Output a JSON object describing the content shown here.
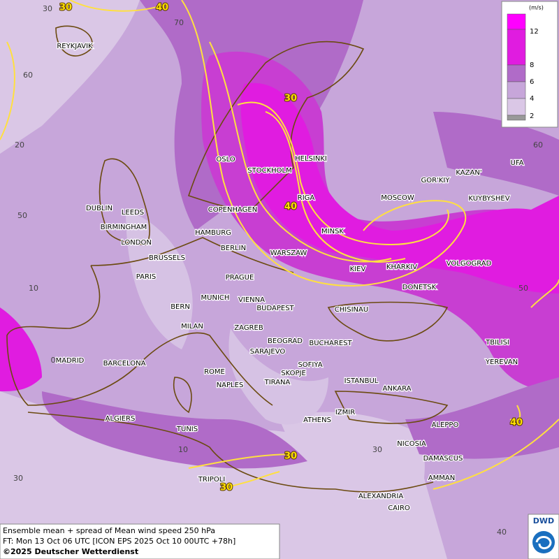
{
  "legend": {
    "unit": "(m/s)",
    "levels": [
      12,
      8,
      6,
      4,
      2
    ]
  },
  "cities": [
    "REYKJAVIK",
    "OSLO",
    "STOCKHOLM",
    "HELSINKI",
    "RIGA",
    "COPENHAGEN",
    "DUBLIN",
    "LEEDS",
    "BIRMINGHAM",
    "LONDON",
    "HAMBURG",
    "BERLIN",
    "MOSCOW",
    "GOR'KIY",
    "KAZAN'",
    "UFA",
    "KUYBYSHEV",
    "MINSK",
    "WARSZAW",
    "KIEV",
    "KHARKIV",
    "VOLGOGRAD",
    "DONETSK",
    "BRUSSELS",
    "PARIS",
    "PRAGUE",
    "MUNICH",
    "VIENNA",
    "BUDAPEST",
    "BERN",
    "MILAN",
    "ZAGREB",
    "CHISINAU",
    "BEOGRAD",
    "BUCHAREST",
    "SARAJEVO",
    "SOFIYA",
    "SKOPJE",
    "TIRANA",
    "ISTANBUL",
    "ANKARA",
    "ROME",
    "NAPLES",
    "MADRID",
    "BARCELONA",
    "TBILISI",
    "YEREVAN",
    "IZMIR",
    "ATHENS",
    "ALGIERS",
    "TUNIS",
    "ALEPPO",
    "NICOSIA",
    "DAMASCUS",
    "TRIPOLI",
    "AMMAN",
    "ALEXANDRIA",
    "CAIRO"
  ],
  "contour_labels": [
    30,
    40,
    30,
    40,
    30,
    30,
    40
  ],
  "grid_labels": [
    30,
    70,
    60,
    20,
    60,
    50,
    10,
    50,
    0,
    10,
    30,
    30,
    40
  ],
  "footer": {
    "lines": [
      "Ensemble mean + spread of Mean wind speed 250 hPa",
      "FT: Mon 13 Oct 06 UTC [ICON EPS 2025 Oct 10 00UTC +78h]",
      "©2025 Deutscher Wetterdienst"
    ],
    "logo": "DWD"
  }
}
